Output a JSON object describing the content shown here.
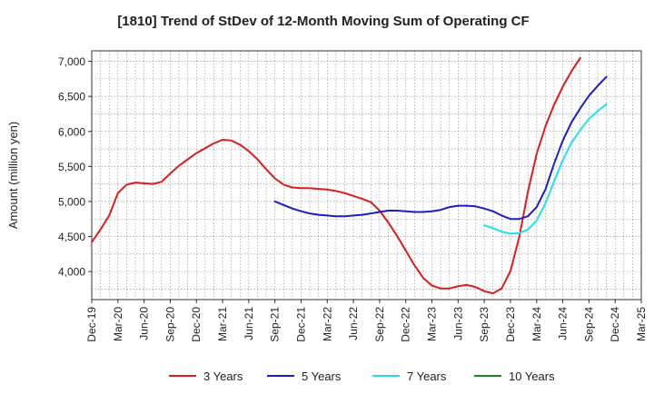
{
  "chart_data": {
    "type": "line",
    "title": "[1810]  Trend of StDev of 12-Month Moving Sum of Operating CF",
    "ylabel": "Amount (million yen)",
    "xlabel": "",
    "ylim": [
      3600,
      7150
    ],
    "y_ticks": [
      4000,
      4500,
      5000,
      5500,
      6000,
      6500,
      7000
    ],
    "y_tick_labels": [
      "4,000",
      "4,500",
      "5,000",
      "5,500",
      "6,000",
      "6,500",
      "7,000"
    ],
    "x_ticks": [
      "Dec-19",
      "Mar-20",
      "Jun-20",
      "Sep-20",
      "Dec-20",
      "Mar-21",
      "Jun-21",
      "Sep-21",
      "Dec-21",
      "Mar-22",
      "Jun-22",
      "Sep-22",
      "Dec-22",
      "Mar-23",
      "Jun-23",
      "Sep-23",
      "Dec-23",
      "Mar-24",
      "Jun-24",
      "Sep-24",
      "Dec-24",
      "Mar-25"
    ],
    "grid": true,
    "legend_position": "bottom",
    "series": [
      {
        "name": "3 Years",
        "color": "#dd1c1c",
        "start": 0,
        "values": [
          4420,
          4600,
          4800,
          5120,
          5240,
          5270,
          5260,
          5250,
          5280,
          5400,
          5510,
          5600,
          5690,
          5760,
          5830,
          5880,
          5870,
          5810,
          5720,
          5600,
          5460,
          5330,
          5240,
          5200,
          5190,
          5190,
          5180,
          5170,
          5150,
          5120,
          5080,
          5040,
          4990,
          4870,
          4700,
          4510,
          4300,
          4090,
          3910,
          3800,
          3760,
          3760,
          3790,
          3810,
          3780,
          3720,
          3690,
          3760,
          4010,
          4490,
          5140,
          5680,
          6070,
          6380,
          6640,
          6860,
          7050
        ]
      },
      {
        "name": "5 Years",
        "color": "#1c1cc8",
        "start": 21,
        "values": [
          5000,
          4950,
          4900,
          4860,
          4830,
          4810,
          4800,
          4790,
          4790,
          4800,
          4810,
          4830,
          4850,
          4870,
          4870,
          4860,
          4850,
          4850,
          4860,
          4880,
          4920,
          4940,
          4940,
          4930,
          4900,
          4860,
          4800,
          4750,
          4750,
          4790,
          4920,
          5170,
          5540,
          5870,
          6130,
          6330,
          6510,
          6650,
          6780
        ]
      },
      {
        "name": "7 Years",
        "color": "#22e0ea",
        "start": 45,
        "values": [
          4660,
          4620,
          4570,
          4540,
          4550,
          4600,
          4730,
          4970,
          5290,
          5590,
          5840,
          6020,
          6180,
          6290,
          6390
        ]
      },
      {
        "name": "10 Years",
        "color": "#1a8a1a",
        "start": 0,
        "values": []
      }
    ]
  }
}
